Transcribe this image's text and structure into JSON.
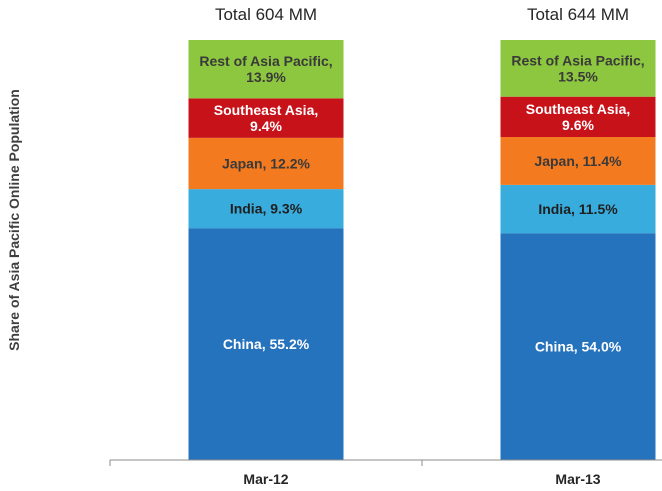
{
  "chart_data": {
    "type": "bar",
    "stacked": true,
    "ylabel": "Share of Asia Pacific Online Population",
    "ylim": [
      0,
      100
    ],
    "legend": "none",
    "grid": false,
    "categories": [
      "Mar-12",
      "Mar-13"
    ],
    "totals": [
      "Total 604 MM",
      "Total 644 MM"
    ],
    "series": [
      {
        "name": "China",
        "color": "#2673bd",
        "text_color": "#ffffff",
        "values": [
          55.2,
          54.0
        ],
        "labels": [
          "China, 55.2%",
          "China, 54.0%"
        ]
      },
      {
        "name": "India",
        "color": "#38acdc",
        "text_color": "#1f1f1f",
        "values": [
          9.3,
          11.5
        ],
        "labels": [
          "India, 9.3%",
          "India, 11.5%"
        ]
      },
      {
        "name": "Japan",
        "color": "#f47a20",
        "text_color": "#3a3a3a",
        "values": [
          12.2,
          11.4
        ],
        "labels": [
          "Japan, 12.2%",
          "Japan, 11.4%"
        ]
      },
      {
        "name": "Southeast Asia",
        "color": "#c8121a",
        "text_color": "#ffffff",
        "values": [
          9.4,
          9.6
        ],
        "labels": [
          "Southeast Asia, 9.4%",
          "Southeast Asia, 9.6%"
        ]
      },
      {
        "name": "Rest of Asia Pacific",
        "color": "#8dc63f",
        "text_color": "#3a3a3a",
        "values": [
          13.9,
          13.5
        ],
        "labels": [
          "Rest of Asia Pacific, 13.9%",
          "Rest of Asia Pacific, 13.5%"
        ]
      }
    ]
  }
}
